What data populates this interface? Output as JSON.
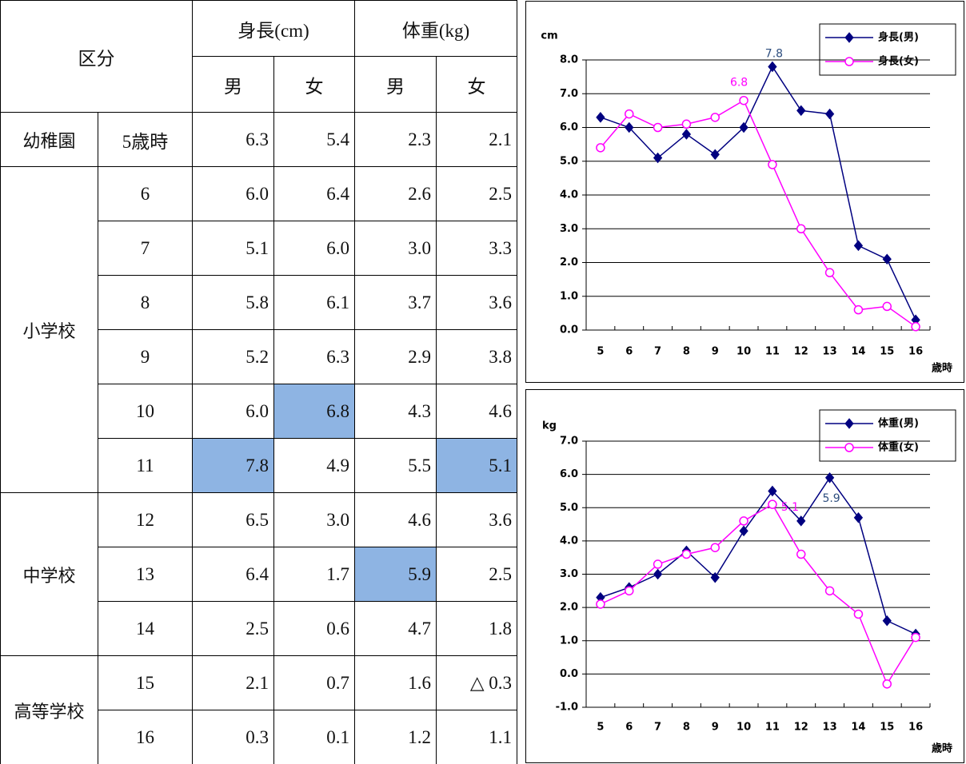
{
  "table": {
    "header": {
      "category": "区分",
      "height": "身長(cm)",
      "weight": "体重(kg)",
      "sexes": [
        "男",
        "女",
        "男",
        "女"
      ]
    },
    "groups": [
      {
        "name": "幼稚園",
        "rows": [
          {
            "age": "5歳時",
            "cells": [
              "6.3",
              "5.4",
              "2.3",
              "2.1"
            ]
          }
        ]
      },
      {
        "name": "小学校",
        "rows": [
          {
            "age": "6",
            "cells": [
              "6.0",
              "6.4",
              "2.6",
              "2.5"
            ]
          },
          {
            "age": "7",
            "cells": [
              "5.1",
              "6.0",
              "3.0",
              "3.3"
            ]
          },
          {
            "age": "8",
            "cells": [
              "5.8",
              "6.1",
              "3.7",
              "3.6"
            ]
          },
          {
            "age": "9",
            "cells": [
              "5.2",
              "6.3",
              "2.9",
              "3.8"
            ]
          },
          {
            "age": "10",
            "cells": [
              "6.0",
              "6.8",
              "4.3",
              "4.6"
            ]
          },
          {
            "age": "11",
            "cells": [
              "7.8",
              "4.9",
              "5.5",
              "5.1"
            ]
          }
        ]
      },
      {
        "name": "中学校",
        "rows": [
          {
            "age": "12",
            "cells": [
              "6.5",
              "3.0",
              "4.6",
              "3.6"
            ]
          },
          {
            "age": "13",
            "cells": [
              "6.4",
              "1.7",
              "5.9",
              "2.5"
            ]
          },
          {
            "age": "14",
            "cells": [
              "2.5",
              "0.6",
              "4.7",
              "1.8"
            ]
          }
        ]
      },
      {
        "name": "高等学校",
        "rows": [
          {
            "age": "15",
            "cells": [
              "2.1",
              "0.7",
              "1.6",
              "△ 0.3"
            ]
          },
          {
            "age": "16",
            "cells": [
              "0.3",
              "0.1",
              "1.2",
              "1.1"
            ]
          }
        ]
      }
    ]
  },
  "chart_data": [
    {
      "type": "line",
      "y_label": "cm",
      "x_label": "歳時",
      "categories": [
        "5",
        "6",
        "7",
        "8",
        "9",
        "10",
        "11",
        "12",
        "13",
        "14",
        "15",
        "16"
      ],
      "series": [
        {
          "name": "身長(男)",
          "color": "#000080",
          "marker": "diamond",
          "values": [
            6.3,
            6.0,
            5.1,
            5.8,
            5.2,
            6.0,
            7.8,
            6.5,
            6.4,
            2.5,
            2.1,
            0.3
          ],
          "value_labels": [
            null,
            null,
            null,
            null,
            null,
            null,
            "7.8",
            null,
            null,
            null,
            null,
            null
          ]
        },
        {
          "name": "身長(女)",
          "color": "#ff00ff",
          "marker": "circle",
          "values": [
            5.4,
            6.4,
            6.0,
            6.1,
            6.3,
            6.8,
            4.9,
            3.0,
            1.7,
            0.6,
            0.7,
            0.1
          ],
          "value_labels": [
            null,
            null,
            null,
            null,
            null,
            "6.8",
            null,
            null,
            null,
            null,
            null,
            null
          ]
        }
      ],
      "ylim": [
        0,
        8
      ],
      "yticks": [
        {
          "value": 0,
          "label": "0.0"
        },
        {
          "value": 1,
          "label": "1.0"
        },
        {
          "value": 2,
          "label": "2.0"
        },
        {
          "value": 3,
          "label": "3.0"
        },
        {
          "value": 4,
          "label": "4.0"
        },
        {
          "value": 5,
          "label": "5.0"
        },
        {
          "value": 6,
          "label": "6.0"
        },
        {
          "value": 7,
          "label": "7.0"
        },
        {
          "value": 8,
          "label": "8.0"
        }
      ],
      "grid": true,
      "legend": "top-right"
    },
    {
      "type": "line",
      "y_label": "kg",
      "x_label": "歳時",
      "categories": [
        "5",
        "6",
        "7",
        "8",
        "9",
        "10",
        "11",
        "12",
        "13",
        "14",
        "15",
        "16"
      ],
      "series": [
        {
          "name": "体重(男)",
          "color": "#000080",
          "marker": "diamond",
          "values": [
            2.3,
            2.6,
            3.0,
            3.7,
            2.9,
            4.3,
            5.5,
            4.6,
            5.9,
            4.7,
            1.6,
            1.2
          ],
          "value_labels": [
            null,
            null,
            null,
            null,
            null,
            null,
            null,
            null,
            "5.9",
            null,
            null,
            null
          ]
        },
        {
          "name": "体重(女)",
          "color": "#ff00ff",
          "marker": "circle",
          "values": [
            2.1,
            2.5,
            3.3,
            3.6,
            3.8,
            4.6,
            5.1,
            3.6,
            2.5,
            1.8,
            -0.3,
            1.1
          ],
          "value_labels": [
            null,
            null,
            null,
            null,
            null,
            null,
            "5.1",
            null,
            null,
            null,
            null,
            null
          ]
        }
      ],
      "ylim": [
        -1,
        7
      ],
      "yticks": [
        {
          "value": -1,
          "label": "-1.0"
        },
        {
          "value": 0,
          "label": "0.0"
        },
        {
          "value": 1,
          "label": "1.0"
        },
        {
          "value": 2,
          "label": "2.0"
        },
        {
          "value": 3,
          "label": "3.0"
        },
        {
          "value": 4,
          "label": "4.0"
        },
        {
          "value": 5,
          "label": "5.0"
        },
        {
          "value": 6,
          "label": "6.0"
        },
        {
          "value": 7,
          "label": "7.0"
        }
      ],
      "grid": true,
      "legend": "top-right"
    }
  ]
}
